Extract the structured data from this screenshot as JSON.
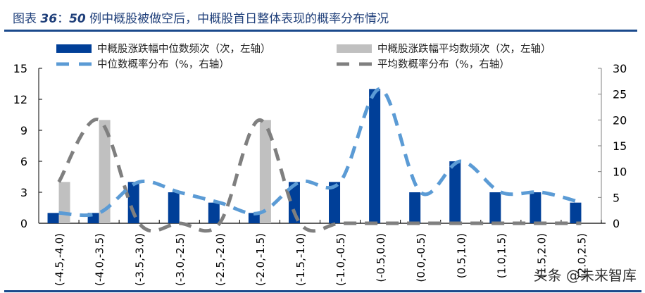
{
  "title": {
    "prefix": "图表 ",
    "number": "36",
    "colon": "：",
    "count": "50",
    "text": " 例中概股被做空后，中概股首日整体表现的概率分布情况"
  },
  "legend": [
    {
      "label": "中概股涨跌幅中位数频次（次，左轴）",
      "type": "bar",
      "color": "#003f98"
    },
    {
      "label": "中概股涨跌幅平均数频次（次，左轴）",
      "type": "bar",
      "color": "#c0c0c0"
    },
    {
      "label": "中位数概率分布（%，右轴）",
      "type": "dashed-line",
      "color": "#5b9bd5"
    },
    {
      "label": "平均数概率分布（%，右轴）",
      "type": "dashed-line",
      "color": "#7f7f7f"
    }
  ],
  "watermark": "头条 @未来智库",
  "chart_data": {
    "type": "bar",
    "title": "50例中概股被做空后，中概股首日整体表现的概率分布情况",
    "xlabel": "",
    "ylabel": "次",
    "y2label": "%",
    "categories": [
      "(-4.5,-4.0)",
      "(-4.0,-3.5)",
      "(-3.5,-3.0)",
      "(-3.0,-2.5)",
      "(-2.5,-2.0)",
      "(-2.0,-1.5)",
      "(-1.5,-1.0)",
      "(-1.0,-0.5)",
      "(-0.5,0.0)",
      "(0.0,-0.5)",
      "(0.5,1.0)",
      "(1.0,1.5)",
      "(1.5,2.0)",
      "(2.0,2.5)"
    ],
    "series": [
      {
        "name": "中概股涨跌幅中位数频次（次，左轴）",
        "type": "bar",
        "axis": "left",
        "color": "#003f98",
        "values": [
          1,
          1,
          4,
          3,
          2,
          1,
          4,
          4,
          13,
          3,
          6,
          3,
          3,
          2
        ]
      },
      {
        "name": "中概股涨跌幅平均数频次（次，左轴）",
        "type": "bar",
        "axis": "left",
        "color": "#c0c0c0",
        "values": [
          4,
          10,
          0,
          0,
          0,
          10,
          0,
          0,
          0,
          0,
          0,
          0,
          0,
          0
        ]
      },
      {
        "name": "中位数概率分布（%，右轴）",
        "type": "line",
        "style": "dashed",
        "axis": "right",
        "color": "#5b9bd5",
        "values": [
          2,
          2,
          8,
          6,
          4,
          2,
          8,
          8,
          26,
          6,
          12,
          6,
          6,
          4
        ]
      },
      {
        "name": "平均数概率分布（%，右轴）",
        "type": "line",
        "style": "dashed",
        "axis": "right",
        "color": "#7f7f7f",
        "values": [
          8,
          20,
          0,
          0,
          0,
          20,
          0,
          0,
          0,
          0,
          0,
          0,
          0,
          0
        ]
      }
    ],
    "ylim": [
      0,
      15
    ],
    "yticks": [
      0,
      3,
      6,
      9,
      12,
      15
    ],
    "y2lim": [
      0,
      30
    ],
    "y2ticks": [
      0,
      5,
      10,
      15,
      20,
      25,
      30
    ],
    "grid": false,
    "legend_position": "top"
  }
}
